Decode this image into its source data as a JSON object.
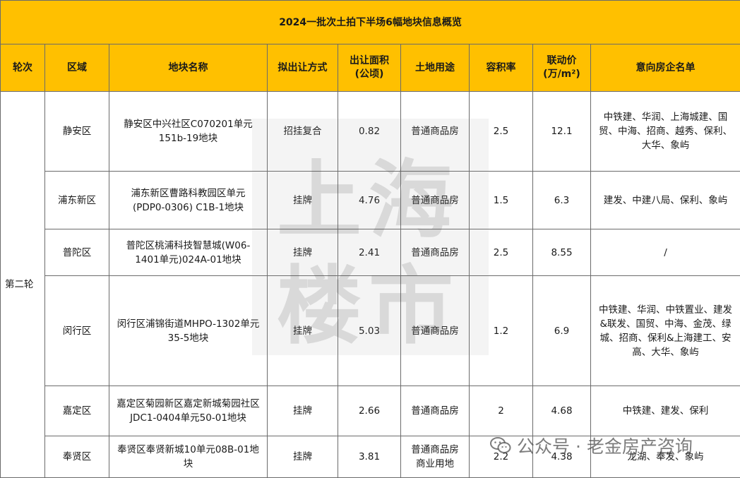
{
  "table": {
    "title": "2024一批次土拍下半场6幅地块信息概览",
    "headers": [
      "轮次",
      "区域",
      "地块名称",
      "拟出让方式",
      "出让面积\n(公顷)",
      "土地用途",
      "容积率",
      "联动价\n(万/m²)",
      "意向房企名单"
    ],
    "round": "第二轮",
    "rows": [
      {
        "region": "静安区",
        "name": "静安区中兴社区C070201单元151b-19地块",
        "method": "招挂复合",
        "area": "0.82",
        "use": "普通商品房",
        "far": "2.5",
        "price": "12.1",
        "developers": "中铁建、华润、上海城建、国贸、中海、招商、越秀、保利、大华、象屿"
      },
      {
        "region": "浦东新区",
        "name": "浦东新区曹路科教园区单元(PDP0-0306) C1B-1地块",
        "method": "挂牌",
        "area": "4.76",
        "use": "普通商品房",
        "far": "1.5",
        "price": "6.3",
        "developers": "建发、中建八局、保利、象屿"
      },
      {
        "region": "普陀区",
        "name": "普陀区桃浦科技智慧城(W06-1401单元)024A-01地块",
        "method": "挂牌",
        "area": "2.41",
        "use": "普通商品房",
        "far": "2.5",
        "price": "8.55",
        "developers": "/"
      },
      {
        "region": "闵行区",
        "name": "闵行区浦锦街道MHPO-1302单元35-5地块",
        "method": "挂牌",
        "area": "5.03",
        "use": "普通商品房",
        "far": "1.2",
        "price": "6.9",
        "developers": "中铁建、华润、中铁置业、建发&联发、国贸、中海、金茂、绿城、招商、保利&上海建工、安高、大华、象屿"
      },
      {
        "region": "嘉定区",
        "name": "嘉定区菊园新区嘉定新城菊园社区JDC1-0404单元50-01地块",
        "method": "挂牌",
        "area": "2.66",
        "use": "普通商品房",
        "far": "2",
        "price": "4.68",
        "developers": "中铁建、建发、保利"
      },
      {
        "region": "奉贤区",
        "name": "奉贤区奉贤新城10单元08B-01地块",
        "method": "挂牌",
        "area": "3.81",
        "use": "普通商品房商业用地",
        "far": "2.2",
        "price": "4.38",
        "developers": "龙湖、奉发、象屿"
      }
    ]
  },
  "watermark": {
    "text": "上海楼市"
  },
  "credit": {
    "text": "公众号 · 老金房产咨询",
    "icon": "wechat-icon"
  },
  "colors": {
    "header_bg": "#FFC000",
    "border": "#6b6b6b"
  }
}
